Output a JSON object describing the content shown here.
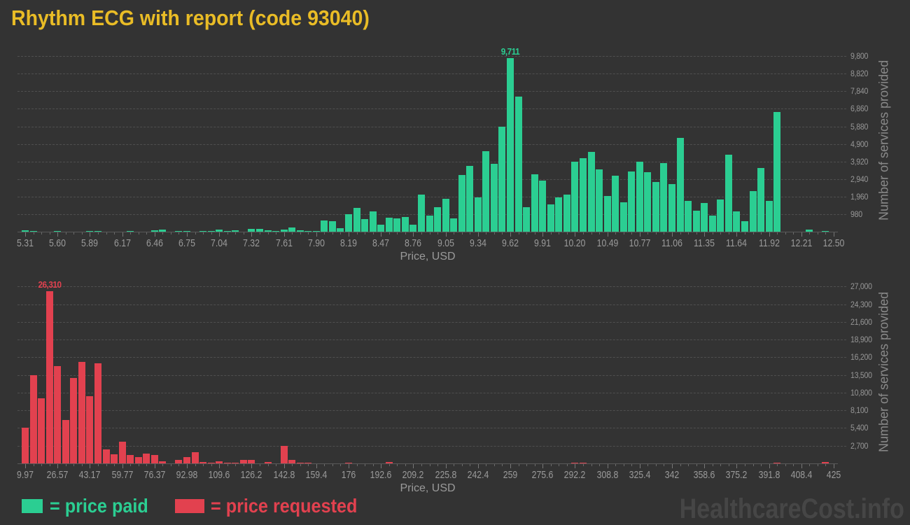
{
  "title": "Rhythm ECG with report (code 93040)",
  "watermark": "HealthcareCost.info",
  "colors": {
    "background": "#333333",
    "paid": "#2bce92",
    "requested": "#e2414f",
    "title": "#e9bc26",
    "axis_text": "#9a9a9a",
    "grid": "#4f4f4f",
    "axis_title": "#8a8a8a",
    "watermark": "#464646"
  },
  "legend": [
    {
      "label": "= price paid",
      "color": "#2bce92"
    },
    {
      "label": "= price requested",
      "color": "#e2414f"
    }
  ],
  "chart_data": [
    {
      "type": "bar",
      "series_name": "price paid",
      "color": "#2bce92",
      "xlabel": "Price, USD",
      "ylabel": "Number of services provided",
      "grid": "dashed-horizontal",
      "x_tick_labels": [
        "5.31",
        "5.60",
        "5.89",
        "6.17",
        "6.46",
        "6.75",
        "7.04",
        "7.32",
        "7.61",
        "7.90",
        "8.19",
        "8.47",
        "8.76",
        "9.05",
        "9.34",
        "9.62",
        "9.91",
        "10.20",
        "10.49",
        "10.77",
        "11.06",
        "11.35",
        "11.64",
        "11.92",
        "12.21",
        "12.50"
      ],
      "y_tick_labels": [
        "980",
        "1,960",
        "2,940",
        "3,920",
        "4,900",
        "5,880",
        "6,860",
        "7,840",
        "8,820",
        "9,800"
      ],
      "y_tick_step": 980,
      "ylim": [
        0,
        10200
      ],
      "bin_start_price": 5.31,
      "bin_step_price": 0.0719,
      "peak": {
        "label": "9,711",
        "index": 60
      },
      "values": [
        60,
        20,
        0,
        0,
        20,
        0,
        0,
        0,
        40,
        40,
        0,
        0,
        0,
        30,
        0,
        0,
        60,
        100,
        0,
        20,
        40,
        0,
        40,
        50,
        120,
        20,
        60,
        0,
        150,
        150,
        80,
        40,
        110,
        250,
        60,
        30,
        40,
        620,
        580,
        210,
        980,
        1310,
        715,
        1150,
        385,
        780,
        755,
        820,
        385,
        2065,
        915,
        1370,
        1840,
        760,
        3150,
        3670,
        1930,
        4480,
        3790,
        5880,
        9711,
        7550,
        1350,
        3215,
        2850,
        1540,
        1930,
        2065,
        3900,
        4090,
        4460,
        3465,
        1975,
        3140,
        1635,
        3350,
        3920,
        3310,
        2760,
        3830,
        2650,
        5230,
        1710,
        1175,
        1610,
        890,
        1780,
        4310,
        1150,
        590,
        2260,
        3570,
        1710,
        6670,
        0,
        0,
        0,
        100,
        0,
        50,
        0
      ]
    },
    {
      "type": "bar",
      "series_name": "price requested",
      "color": "#e2414f",
      "xlabel": "Price, USD",
      "ylabel": "Number of services provided",
      "grid": "dashed-horizontal",
      "x_tick_labels": [
        "9.97",
        "26.57",
        "43.17",
        "59.77",
        "76.37",
        "92.98",
        "109.6",
        "126.2",
        "142.8",
        "159.4",
        "176",
        "192.6",
        "209.2",
        "225.8",
        "242.4",
        "259",
        "275.6",
        "292.2",
        "308.8",
        "325.4",
        "342",
        "358.6",
        "375.2",
        "391.8",
        "408.4",
        "425"
      ],
      "y_tick_labels": [
        "2,700",
        "5,400",
        "8,100",
        "10,800",
        "13,500",
        "16,200",
        "18,900",
        "21,600",
        "24,300",
        "27,000"
      ],
      "y_tick_step": 2700,
      "ylim": [
        0,
        28000
      ],
      "bin_start_price": 9.97,
      "bin_step_price": 4.1503,
      "peak": {
        "label": "26,310",
        "index": 3
      },
      "values": [
        5500,
        13500,
        9900,
        26310,
        14900,
        6600,
        13000,
        15500,
        10300,
        15300,
        2160,
        1400,
        3300,
        1260,
        1000,
        1540,
        1260,
        290,
        0,
        570,
        1000,
        1730,
        180,
        110,
        290,
        60,
        110,
        570,
        550,
        0,
        230,
        0,
        2620,
        570,
        130,
        150,
        0,
        0,
        0,
        0,
        100,
        0,
        0,
        0,
        0,
        250,
        0,
        0,
        0,
        0,
        0,
        0,
        0,
        0,
        0,
        0,
        0,
        0,
        0,
        0,
        0,
        0,
        0,
        0,
        0,
        0,
        0,
        0,
        100,
        100,
        0,
        0,
        0,
        0,
        0,
        0,
        0,
        0,
        0,
        0,
        0,
        0,
        0,
        0,
        0,
        0,
        0,
        0,
        0,
        0,
        0,
        0,
        0,
        100,
        0,
        0,
        0,
        0,
        0,
        200,
        0
      ]
    }
  ]
}
